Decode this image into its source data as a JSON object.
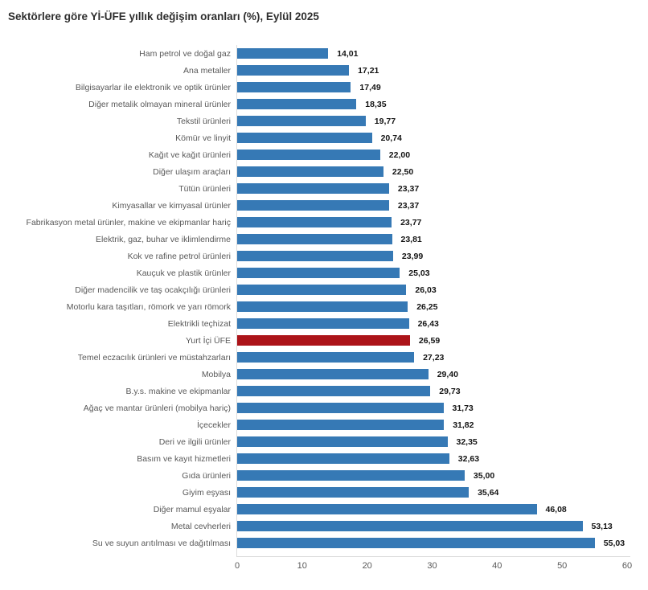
{
  "title": "Sektörlere göre Yİ-ÜFE yıllık değişim oranları (%), Eylül 2025",
  "colors": {
    "bar": "#3679b5",
    "highlight": "#ac1419",
    "axis_line": "#d9d9d9",
    "category_label": "#595959",
    "value_label": "#141414",
    "tick_label": "#595959"
  },
  "chart_data": {
    "type": "bar",
    "orientation": "horizontal",
    "title": "Sektörlere göre Yİ-ÜFE yıllık değişim oranları (%), Eylül 2025",
    "xlabel": "",
    "ylabel": "",
    "xlim": [
      0,
      60
    ],
    "x_ticks": [
      0,
      10,
      20,
      30,
      40,
      50,
      60
    ],
    "grid": false,
    "legend": false,
    "highlight_category": "Yurt İçi ÜFE",
    "categories": [
      "Ham petrol ve doğal gaz",
      "Ana metaller",
      "Bilgisayarlar ile elektronik ve optik ürünler",
      "Diğer metalik olmayan mineral ürünler",
      "Tekstil ürünleri",
      "Kömür ve linyit",
      "Kağıt ve kağıt ürünleri",
      "Diğer ulaşım araçları",
      "Tütün ürünleri",
      "Kimyasallar ve kimyasal ürünler",
      "Fabrikasyon metal ürünler, makine ve ekipmanlar hariç",
      "Elektrik, gaz, buhar ve iklimlendirme",
      "Kok ve rafine petrol ürünleri",
      "Kauçuk ve plastik ürünler",
      "Diğer madencilik ve taş ocakçılığı ürünleri",
      "Motorlu kara taşıtları, römork ve yarı römork",
      "Elektrikli teçhizat",
      "Yurt İçi ÜFE",
      "Temel eczacılık ürünleri ve müstahzarları",
      "Mobilya",
      "B.y.s. makine ve ekipmanlar",
      "Ağaç ve mantar ürünleri (mobilya hariç)",
      "İçecekler",
      "Deri ve ilgili ürünler",
      "Basım ve kayıt hizmetleri",
      "Gıda ürünleri",
      "Giyim eşyası",
      "Diğer mamul eşyalar",
      "Metal cevherleri",
      "Su ve suyun arıtılması ve dağıtılması"
    ],
    "values": [
      14.01,
      17.21,
      17.49,
      18.35,
      19.77,
      20.74,
      22.0,
      22.5,
      23.37,
      23.37,
      23.77,
      23.81,
      23.99,
      25.03,
      26.03,
      26.25,
      26.43,
      26.59,
      27.23,
      29.4,
      29.73,
      31.73,
      31.82,
      32.35,
      32.63,
      35.0,
      35.64,
      46.08,
      53.13,
      55.03
    ],
    "value_labels": [
      "14,01",
      "17,21",
      "17,49",
      "18,35",
      "19,77",
      "20,74",
      "22,00",
      "22,50",
      "23,37",
      "23,37",
      "23,77",
      "23,81",
      "23,99",
      "25,03",
      "26,03",
      "26,25",
      "26,43",
      "26,59",
      "27,23",
      "29,40",
      "29,73",
      "31,73",
      "31,82",
      "32,35",
      "32,63",
      "35,00",
      "35,64",
      "46,08",
      "53,13",
      "55,03"
    ]
  }
}
